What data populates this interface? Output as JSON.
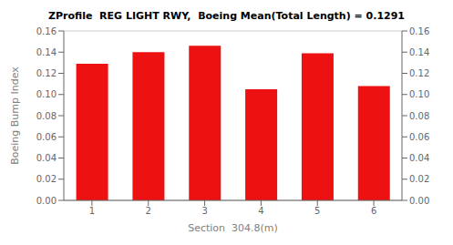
{
  "chart_data": {
    "type": "bar",
    "title": "ZProfile  REG LIGHT RWY,  Boeing Mean(Total Length) = 0.1291",
    "xlabel": "Section  304.8(m)",
    "ylabel": "Boeing Bump Index",
    "categories": [
      1,
      2,
      3,
      4,
      5,
      6
    ],
    "values": [
      0.129,
      0.14,
      0.146,
      0.105,
      0.139,
      0.108
    ],
    "color": "#ee1111",
    "ylim": [
      0.0,
      0.16
    ],
    "yticks": [
      {
        "value": 0.0,
        "label": "0.00"
      },
      {
        "value": 0.02,
        "label": "0.02"
      },
      {
        "value": 0.04,
        "label": "0.04"
      },
      {
        "value": 0.06,
        "label": "0.06"
      },
      {
        "value": 0.08,
        "label": "0.08"
      },
      {
        "value": 0.1,
        "label": "0.10"
      },
      {
        "value": 0.12,
        "label": "0.12"
      },
      {
        "value": 0.14,
        "label": "0.14"
      },
      {
        "value": 0.16,
        "label": "0.16"
      }
    ],
    "y2lim": [
      0.0,
      0.16
    ],
    "y2ticks": [
      {
        "value": 0.0,
        "label": "0.00"
      },
      {
        "value": 0.02,
        "label": "0.02"
      },
      {
        "value": 0.04,
        "label": "0.04"
      },
      {
        "value": 0.06,
        "label": "0.06"
      },
      {
        "value": 0.08,
        "label": "0.08"
      },
      {
        "value": 0.1,
        "label": "0.10"
      },
      {
        "value": 0.12,
        "label": "0.12"
      },
      {
        "value": 0.14,
        "label": "0.14"
      },
      {
        "value": 0.16,
        "label": "0.16"
      }
    ],
    "grid": true
  }
}
